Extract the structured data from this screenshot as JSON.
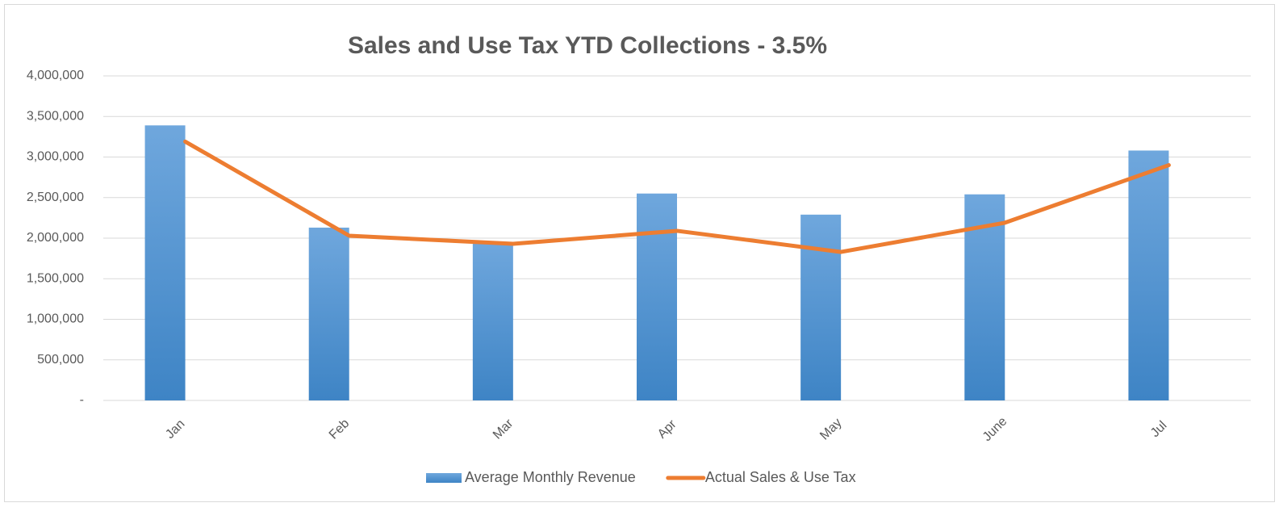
{
  "chart_data": {
    "type": "bar",
    "title": "Sales and Use Tax YTD Collections - 3.5%",
    "categories": [
      "Jan",
      "Feb",
      "Mar",
      "Apr",
      "May",
      "June",
      "Jul"
    ],
    "series": [
      {
        "name": "Average Monthly Revenue",
        "type": "bar",
        "color": "#5b9bd5",
        "values": [
          3390000,
          2130000,
          1950000,
          2550000,
          2290000,
          2540000,
          3080000
        ]
      },
      {
        "name": "Actual Sales & Use Tax",
        "type": "line",
        "color": "#ed7d31",
        "values": [
          3190000,
          2030000,
          1930000,
          2090000,
          1830000,
          2190000,
          2900000
        ]
      }
    ],
    "ylim": [
      0,
      4000000
    ],
    "yticks": [
      {
        "value": 0,
        "label": "-"
      },
      {
        "value": 500000,
        "label": "500,000"
      },
      {
        "value": 1000000,
        "label": "1,000,000"
      },
      {
        "value": 1500000,
        "label": "1,500,000"
      },
      {
        "value": 2000000,
        "label": "2,000,000"
      },
      {
        "value": 2500000,
        "label": "2,500,000"
      },
      {
        "value": 3000000,
        "label": "3,000,000"
      },
      {
        "value": 3500000,
        "label": "3,500,000"
      },
      {
        "value": 4000000,
        "label": "4,000,000"
      }
    ],
    "grid": true,
    "legend": "bottom"
  }
}
